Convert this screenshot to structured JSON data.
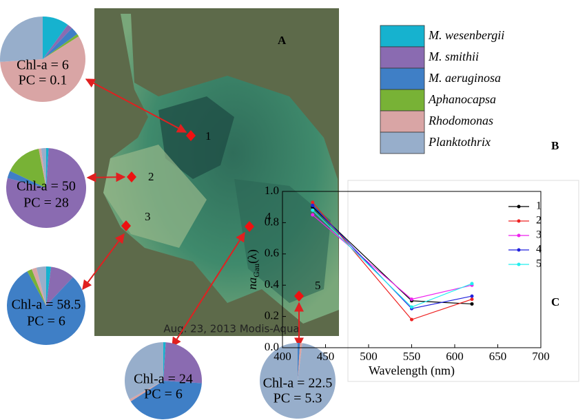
{
  "panels": [
    "A",
    "B",
    "C"
  ],
  "image_caption": "Aug. 23, 2013 Modis-Aqua",
  "stations": [
    "1",
    "2",
    "3",
    "4",
    "5"
  ],
  "legend": {
    "names": [
      "M. wesenbergii",
      "M. smithii",
      "M. aeruginosa",
      "Aphanocapsa",
      "Rhodomonas",
      "Planktothrix"
    ],
    "colors": [
      "#16b2cf",
      "#8a6bb1",
      "#3f7fc6",
      "#78b236",
      "#d9a5a5",
      "#97aecb"
    ]
  },
  "chart_data": [
    {
      "type": "pie",
      "values": [
        10,
        2,
        3,
        1,
        58,
        26
      ],
      "annotations": [
        "Chl-a = 6",
        "PC = 0.1"
      ]
    },
    {
      "type": "pie",
      "values": [
        1,
        78,
        3,
        15,
        1,
        2
      ],
      "annotations": [
        "Chl-a = 50",
        "PC = 28"
      ]
    },
    {
      "type": "pie",
      "values": [
        2,
        10,
        80,
        2,
        2,
        4
      ],
      "annotations": [
        "Chl-a = 58.5",
        "PC = 6"
      ]
    },
    {
      "type": "pie",
      "values": [
        1,
        25,
        40,
        0,
        1,
        33
      ],
      "annotations": [
        "Chl-a = 24",
        "PC = 6"
      ]
    },
    {
      "type": "pie",
      "values": [
        0,
        0,
        1,
        0,
        1,
        98
      ],
      "annotations": [
        "Chl-a = 22.5",
        "PC = 5.3"
      ]
    },
    {
      "type": "line",
      "xlabel": "Wavelength (nm)",
      "ylabel": {
        "main": "na",
        "sub": "Gau",
        "suffix": "(λ)"
      },
      "x": [
        435,
        550,
        620
      ],
      "xlim": [
        400,
        700
      ],
      "xticks": [
        400,
        450,
        500,
        550,
        600,
        650,
        700
      ],
      "ylim": [
        0,
        1
      ],
      "yticks": [
        {
          "value": 0,
          "label": "0.0"
        },
        0.2,
        0.4,
        0.6,
        0.8,
        {
          "value": 1,
          "label": "1.0"
        }
      ],
      "series": [
        {
          "name": "1",
          "color": "#000000",
          "values": [
            0.9,
            0.3,
            0.28
          ]
        },
        {
          "name": "2",
          "color": "#ee2222",
          "values": [
            0.93,
            0.18,
            0.31
          ]
        },
        {
          "name": "3",
          "color": "#ee22ee",
          "values": [
            0.85,
            0.31,
            0.4
          ]
        },
        {
          "name": "4",
          "color": "#2222dd",
          "values": [
            0.91,
            0.25,
            0.33
          ]
        },
        {
          "name": "5",
          "color": "#22eeee",
          "values": [
            0.88,
            0.26,
            0.41
          ]
        }
      ]
    }
  ]
}
